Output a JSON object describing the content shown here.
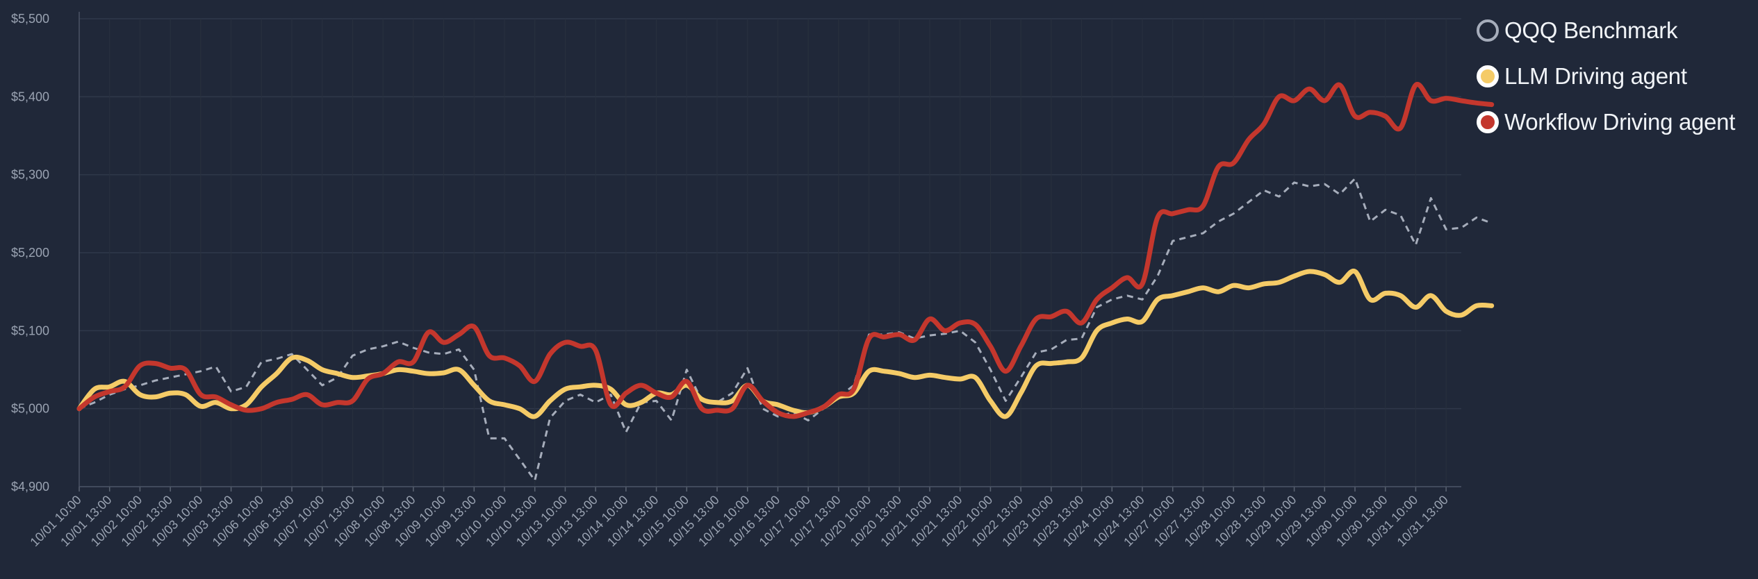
{
  "chart_data": {
    "type": "line",
    "title": "",
    "xlabel": "",
    "ylabel": "",
    "ylim": [
      4900,
      5500
    ],
    "yticks": [
      4900,
      5000,
      5100,
      5200,
      5300,
      5400,
      5500
    ],
    "ytick_labels": [
      "$4,900",
      "$5,000",
      "$5,100",
      "$5,200",
      "$5,300",
      "$5,400",
      "$5,500"
    ],
    "x_count": 46,
    "x_tick_labels": [
      "10/01 10:00",
      "10/01 13:00",
      "10/02 10:00",
      "10/02 13:00",
      "10/03 10:00",
      "10/03 13:00",
      "10/06 10:00",
      "10/06 13:00",
      "10/07 10:00",
      "10/07 13:00",
      "10/08 10:00",
      "10/08 13:00",
      "10/09 10:00",
      "10/09 13:00",
      "10/10 10:00",
      "10/10 13:00",
      "10/13 10:00",
      "10/13 13:00",
      "10/14 10:00",
      "10/14 13:00",
      "10/15 10:00",
      "10/15 13:00",
      "10/16 10:00",
      "10/16 13:00",
      "10/17 10:00",
      "10/17 13:00",
      "10/20 10:00",
      "10/20 13:00",
      "10/21 10:00",
      "10/21 13:00",
      "10/22 10:00",
      "10/22 13:00",
      "10/23 10:00",
      "10/23 13:00",
      "10/24 10:00",
      "10/24 13:00",
      "10/27 10:00",
      "10/27 13:00",
      "10/28 10:00",
      "10/28 13:00",
      "10/29 10:00",
      "10/29 13:00",
      "10/30 10:00",
      "10/30 13:00",
      "10/31 10:00",
      "10/31 13:00"
    ],
    "legend_position": "right",
    "grid": true,
    "series": [
      {
        "name": "QQQ Benchmark",
        "color": "#a6adbb",
        "style": "dashed",
        "points": [
          [
            0,
            5000
          ],
          [
            0.5,
            5008
          ],
          [
            1,
            5018
          ],
          [
            1.5,
            5025
          ],
          [
            2,
            5030
          ],
          [
            2.5,
            5036
          ],
          [
            3,
            5040
          ],
          [
            3.5,
            5044
          ],
          [
            4,
            5048
          ],
          [
            4.5,
            5054
          ],
          [
            5,
            5022
          ],
          [
            5.5,
            5028
          ],
          [
            6,
            5060
          ],
          [
            6.5,
            5064
          ],
          [
            7,
            5070
          ],
          [
            7.5,
            5050
          ],
          [
            8,
            5030
          ],
          [
            8.5,
            5040
          ],
          [
            9,
            5068
          ],
          [
            9.5,
            5076
          ],
          [
            10,
            5080
          ],
          [
            10.5,
            5086
          ],
          [
            11,
            5078
          ],
          [
            11.5,
            5072
          ],
          [
            12,
            5070
          ],
          [
            12.5,
            5076
          ],
          [
            13,
            5050
          ],
          [
            13.5,
            4962
          ],
          [
            14,
            4962
          ],
          [
            14.5,
            4935
          ],
          [
            15,
            4908
          ],
          [
            15.5,
            4988
          ],
          [
            16,
            5010
          ],
          [
            16.5,
            5018
          ],
          [
            17,
            5008
          ],
          [
            17.5,
            5018
          ],
          [
            18,
            4970
          ],
          [
            18.5,
            5008
          ],
          [
            19,
            5010
          ],
          [
            19.5,
            4985
          ],
          [
            20,
            5050
          ],
          [
            20.5,
            5010
          ],
          [
            21,
            5008
          ],
          [
            21.5,
            5020
          ],
          [
            22,
            5052
          ],
          [
            22.5,
            5000
          ],
          [
            23,
            4990
          ],
          [
            23.5,
            4995
          ],
          [
            24,
            4985
          ],
          [
            24.5,
            5000
          ],
          [
            25,
            5015
          ],
          [
            25.5,
            5030
          ],
          [
            26,
            5095
          ],
          [
            26.5,
            5095
          ],
          [
            27,
            5098
          ],
          [
            27.5,
            5090
          ],
          [
            28,
            5094
          ],
          [
            28.5,
            5096
          ],
          [
            29,
            5100
          ],
          [
            29.5,
            5085
          ],
          [
            30,
            5050
          ],
          [
            30.5,
            5010
          ],
          [
            31,
            5040
          ],
          [
            31.5,
            5072
          ],
          [
            32,
            5076
          ],
          [
            32.5,
            5088
          ],
          [
            33,
            5090
          ],
          [
            33.5,
            5130
          ],
          [
            34,
            5140
          ],
          [
            34.5,
            5145
          ],
          [
            35,
            5140
          ],
          [
            35.5,
            5170
          ],
          [
            36,
            5215
          ],
          [
            36.5,
            5220
          ],
          [
            37,
            5225
          ],
          [
            37.5,
            5240
          ],
          [
            38,
            5250
          ],
          [
            38.5,
            5265
          ],
          [
            39,
            5280
          ],
          [
            39.5,
            5272
          ],
          [
            40,
            5290
          ],
          [
            40.5,
            5285
          ],
          [
            41,
            5288
          ],
          [
            41.5,
            5275
          ],
          [
            42,
            5295
          ],
          [
            42.5,
            5240
          ],
          [
            43,
            5255
          ],
          [
            43.5,
            5248
          ],
          [
            44,
            5210
          ],
          [
            44.5,
            5270
          ],
          [
            45,
            5230
          ],
          [
            45.5,
            5232
          ],
          [
            46,
            5245
          ],
          [
            46.5,
            5238
          ]
        ]
      },
      {
        "name": "LLM Driving agent",
        "color": "#f5cb67",
        "style": "solid",
        "points": [
          [
            0,
            5000
          ],
          [
            0.5,
            5025
          ],
          [
            1,
            5028
          ],
          [
            1.5,
            5035
          ],
          [
            2,
            5018
          ],
          [
            2.5,
            5015
          ],
          [
            3,
            5020
          ],
          [
            3.5,
            5018
          ],
          [
            4,
            5003
          ],
          [
            4.5,
            5008
          ],
          [
            5,
            5000
          ],
          [
            5.5,
            5005
          ],
          [
            6,
            5028
          ],
          [
            6.5,
            5045
          ],
          [
            7,
            5065
          ],
          [
            7.5,
            5062
          ],
          [
            8,
            5050
          ],
          [
            8.5,
            5045
          ],
          [
            9,
            5040
          ],
          [
            9.5,
            5042
          ],
          [
            10,
            5045
          ],
          [
            10.5,
            5050
          ],
          [
            11,
            5048
          ],
          [
            11.5,
            5045
          ],
          [
            12,
            5046
          ],
          [
            12.5,
            5050
          ],
          [
            13,
            5030
          ],
          [
            13.5,
            5010
          ],
          [
            14,
            5005
          ],
          [
            14.5,
            5000
          ],
          [
            15,
            4990
          ],
          [
            15.5,
            5010
          ],
          [
            16,
            5025
          ],
          [
            16.5,
            5028
          ],
          [
            17,
            5030
          ],
          [
            17.5,
            5025
          ],
          [
            18,
            5005
          ],
          [
            18.5,
            5008
          ],
          [
            19,
            5020
          ],
          [
            19.5,
            5018
          ],
          [
            20,
            5030
          ],
          [
            20.5,
            5012
          ],
          [
            21,
            5008
          ],
          [
            21.5,
            5010
          ],
          [
            22,
            5030
          ],
          [
            22.5,
            5010
          ],
          [
            23,
            5005
          ],
          [
            23.5,
            4998
          ],
          [
            24,
            4995
          ],
          [
            24.5,
            5002
          ],
          [
            25,
            5015
          ],
          [
            25.5,
            5020
          ],
          [
            26,
            5048
          ],
          [
            26.5,
            5048
          ],
          [
            27,
            5045
          ],
          [
            27.5,
            5040
          ],
          [
            28,
            5043
          ],
          [
            28.5,
            5040
          ],
          [
            29,
            5038
          ],
          [
            29.5,
            5040
          ],
          [
            30,
            5010
          ],
          [
            30.5,
            4990
          ],
          [
            31,
            5020
          ],
          [
            31.5,
            5055
          ],
          [
            32,
            5058
          ],
          [
            32.5,
            5060
          ],
          [
            33,
            5065
          ],
          [
            33.5,
            5100
          ],
          [
            34,
            5110
          ],
          [
            34.5,
            5115
          ],
          [
            35,
            5112
          ],
          [
            35.5,
            5140
          ],
          [
            36,
            5145
          ],
          [
            36.5,
            5150
          ],
          [
            37,
            5155
          ],
          [
            37.5,
            5150
          ],
          [
            38,
            5158
          ],
          [
            38.5,
            5155
          ],
          [
            39,
            5160
          ],
          [
            39.5,
            5162
          ],
          [
            40,
            5170
          ],
          [
            40.5,
            5176
          ],
          [
            41,
            5172
          ],
          [
            41.5,
            5162
          ],
          [
            42,
            5176
          ],
          [
            42.5,
            5140
          ],
          [
            43,
            5148
          ],
          [
            43.5,
            5145
          ],
          [
            44,
            5130
          ],
          [
            44.5,
            5145
          ],
          [
            45,
            5125
          ],
          [
            45.5,
            5120
          ],
          [
            46,
            5132
          ],
          [
            46.5,
            5132
          ]
        ]
      },
      {
        "name": "Workflow Driving agent",
        "color": "#c4372d",
        "style": "solid",
        "points": [
          [
            0,
            5000
          ],
          [
            0.5,
            5015
          ],
          [
            1,
            5022
          ],
          [
            1.5,
            5028
          ],
          [
            2,
            5055
          ],
          [
            2.5,
            5058
          ],
          [
            3,
            5052
          ],
          [
            3.5,
            5050
          ],
          [
            4,
            5018
          ],
          [
            4.5,
            5015
          ],
          [
            5,
            5005
          ],
          [
            5.5,
            4998
          ],
          [
            6,
            5000
          ],
          [
            6.5,
            5008
          ],
          [
            7,
            5012
          ],
          [
            7.5,
            5018
          ],
          [
            8,
            5005
          ],
          [
            8.5,
            5008
          ],
          [
            9,
            5010
          ],
          [
            9.5,
            5038
          ],
          [
            10,
            5045
          ],
          [
            10.5,
            5060
          ],
          [
            11,
            5060
          ],
          [
            11.5,
            5098
          ],
          [
            12,
            5085
          ],
          [
            12.5,
            5095
          ],
          [
            13,
            5105
          ],
          [
            13.5,
            5068
          ],
          [
            14,
            5065
          ],
          [
            14.5,
            5055
          ],
          [
            15,
            5035
          ],
          [
            15.5,
            5070
          ],
          [
            16,
            5085
          ],
          [
            16.5,
            5080
          ],
          [
            17,
            5075
          ],
          [
            17.5,
            5005
          ],
          [
            18,
            5020
          ],
          [
            18.5,
            5030
          ],
          [
            19,
            5020
          ],
          [
            19.5,
            5015
          ],
          [
            20,
            5035
          ],
          [
            20.5,
            5000
          ],
          [
            21,
            4998
          ],
          [
            21.5,
            5000
          ],
          [
            22,
            5030
          ],
          [
            22.5,
            5010
          ],
          [
            23,
            4995
          ],
          [
            23.5,
            4990
          ],
          [
            24,
            4995
          ],
          [
            24.5,
            5002
          ],
          [
            25,
            5018
          ],
          [
            25.5,
            5025
          ],
          [
            26,
            5090
          ],
          [
            26.5,
            5092
          ],
          [
            27,
            5095
          ],
          [
            27.5,
            5088
          ],
          [
            28,
            5115
          ],
          [
            28.5,
            5100
          ],
          [
            29,
            5110
          ],
          [
            29.5,
            5108
          ],
          [
            30,
            5080
          ],
          [
            30.5,
            5048
          ],
          [
            31,
            5080
          ],
          [
            31.5,
            5115
          ],
          [
            32,
            5118
          ],
          [
            32.5,
            5125
          ],
          [
            33,
            5110
          ],
          [
            33.5,
            5140
          ],
          [
            34,
            5155
          ],
          [
            34.5,
            5168
          ],
          [
            35,
            5160
          ],
          [
            35.5,
            5245
          ],
          [
            36,
            5250
          ],
          [
            36.5,
            5255
          ],
          [
            37,
            5260
          ],
          [
            37.5,
            5310
          ],
          [
            38,
            5315
          ],
          [
            38.5,
            5345
          ],
          [
            39,
            5365
          ],
          [
            39.5,
            5400
          ],
          [
            40,
            5395
          ],
          [
            40.5,
            5410
          ],
          [
            41,
            5395
          ],
          [
            41.5,
            5415
          ],
          [
            42,
            5375
          ],
          [
            42.5,
            5380
          ],
          [
            43,
            5375
          ],
          [
            43.5,
            5360
          ],
          [
            44,
            5415
          ],
          [
            44.5,
            5395
          ],
          [
            45,
            5398
          ],
          [
            45.5,
            5395
          ],
          [
            46,
            5392
          ],
          [
            46.5,
            5390
          ]
        ]
      }
    ]
  }
}
